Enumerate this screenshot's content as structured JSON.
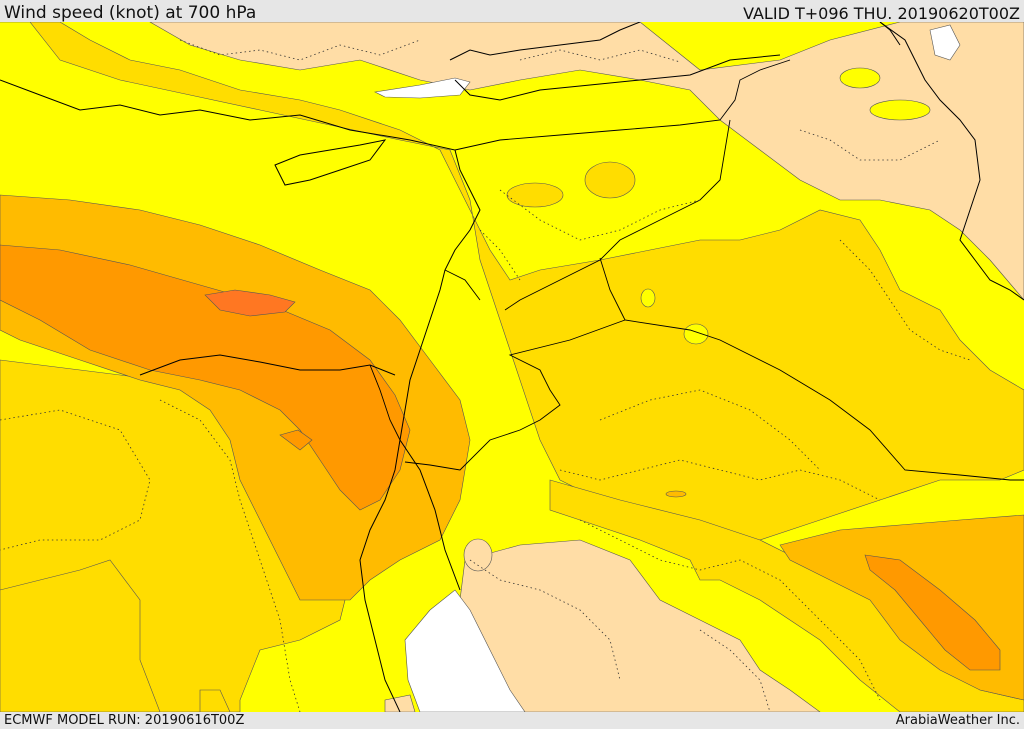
{
  "header": {
    "title": "Wind speed (knot) at 700 hPa",
    "valid": "VALID T+096 THU. 20190620T00Z"
  },
  "footer": {
    "model_run": "ECMWF MODEL RUN: 20190616T00Z",
    "credit": "ArabiaWeather Inc."
  },
  "map": {
    "variable": "Wind speed",
    "unit": "knot",
    "level": "700 hPa",
    "colors": {
      "land_weak": "#ffdda6",
      "band_1": "#ffff00",
      "band_2": "#ffdd00",
      "band_3": "#ffbb00",
      "band_4": "#ff9900",
      "band_5": "#ff7722",
      "sea_no_data": "#ffffff"
    }
  }
}
